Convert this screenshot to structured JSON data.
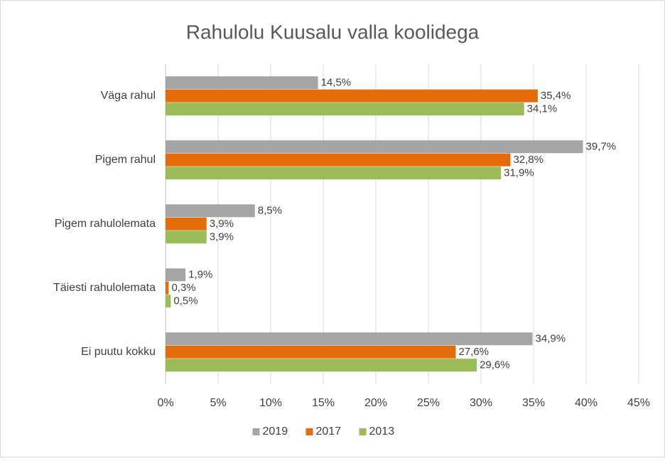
{
  "chart_data": {
    "type": "bar",
    "orientation": "horizontal",
    "title": "Rahulolu Kuusalu valla koolidega",
    "categories": [
      "Väga rahul",
      "Pigem rahul",
      "Pigem rahulolemata",
      "Täiesti rahulolemata",
      "Ei puutu kokku"
    ],
    "series": [
      {
        "name": "2019",
        "color": "#a5a5a5",
        "values": [
          14.5,
          39.7,
          8.5,
          1.9,
          34.9
        ],
        "value_labels": [
          "14,5%",
          "39,7%",
          "8,5%",
          "1,9%",
          "34,9%"
        ]
      },
      {
        "name": "2017",
        "color": "#e46c0a",
        "values": [
          35.4,
          32.8,
          3.9,
          0.3,
          27.6
        ],
        "value_labels": [
          "35,4%",
          "32,8%",
          "3,9%",
          "0,3%",
          "27,6%"
        ]
      },
      {
        "name": "2013",
        "color": "#9bbb59",
        "values": [
          34.1,
          31.9,
          3.9,
          0.5,
          29.6
        ],
        "value_labels": [
          "34,1%",
          "31,9%",
          "3,9%",
          "0,5%",
          "29,6%"
        ]
      }
    ],
    "xlim": [
      0,
      45
    ],
    "xticks": [
      {
        "value": 0,
        "label": "0%"
      },
      {
        "value": 5,
        "label": "5%"
      },
      {
        "value": 10,
        "label": "10%"
      },
      {
        "value": 15,
        "label": "15%"
      },
      {
        "value": 20,
        "label": "20%"
      },
      {
        "value": 25,
        "label": "25%"
      },
      {
        "value": 30,
        "label": "30%"
      },
      {
        "value": 35,
        "label": "35%"
      },
      {
        "value": 40,
        "label": "40%"
      },
      {
        "value": 45,
        "label": "45%"
      }
    ],
    "grid": true,
    "legend": "bottom"
  }
}
